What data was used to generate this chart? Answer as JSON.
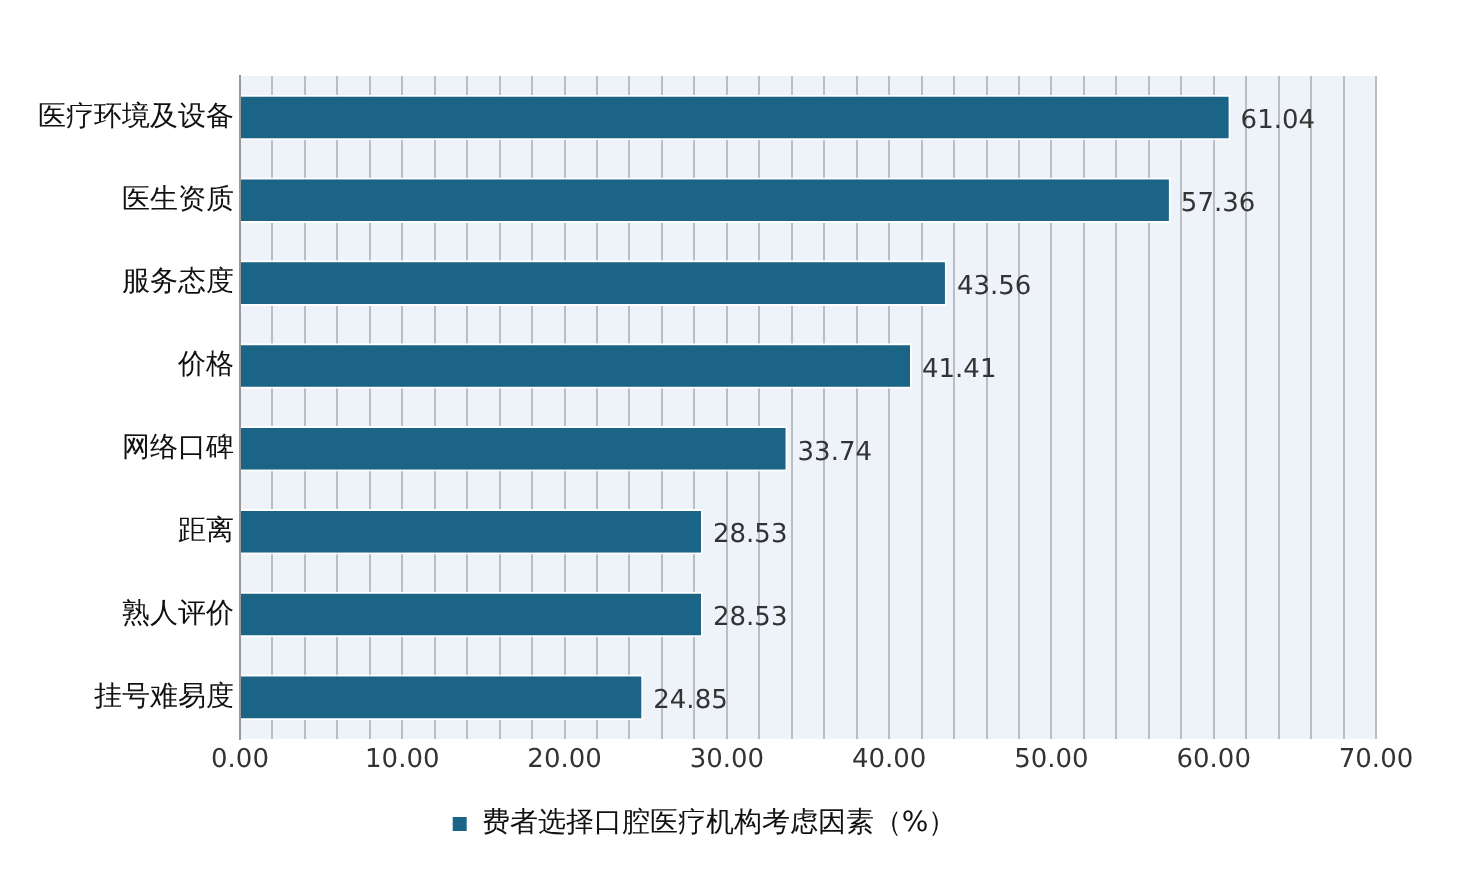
{
  "chart_data": {
    "type": "bar",
    "orientation": "horizontal",
    "categories": [
      "医疗环境及设备",
      "医生资质",
      "服务态度",
      "价格",
      "网络口碑",
      "距离",
      "熟人评价",
      "挂号难易度"
    ],
    "series": [
      {
        "name": "费者选择口腔医疗机构考虑因素（%）",
        "color": "#1b6486",
        "values": [
          61.04,
          57.36,
          43.56,
          41.41,
          33.74,
          28.53,
          28.53,
          24.85
        ]
      }
    ],
    "xlim": [
      0,
      70
    ],
    "xticks": [
      {
        "value": 0,
        "label": "0.00"
      },
      {
        "value": 2,
        "label": null
      },
      {
        "value": 4,
        "label": null
      },
      {
        "value": 6,
        "label": null
      },
      {
        "value": 8,
        "label": null
      },
      {
        "value": 10,
        "label": "10.00"
      },
      {
        "value": 12,
        "label": null
      },
      {
        "value": 14,
        "label": null
      },
      {
        "value": 16,
        "label": null
      },
      {
        "value": 18,
        "label": null
      },
      {
        "value": 20,
        "label": "20.00"
      },
      {
        "value": 22,
        "label": null
      },
      {
        "value": 24,
        "label": null
      },
      {
        "value": 26,
        "label": null
      },
      {
        "value": 28,
        "label": null
      },
      {
        "value": 30,
        "label": "30.00"
      },
      {
        "value": 32,
        "label": null
      },
      {
        "value": 34,
        "label": null
      },
      {
        "value": 36,
        "label": null
      },
      {
        "value": 38,
        "label": null
      },
      {
        "value": 40,
        "label": "40.00"
      },
      {
        "value": 42,
        "label": null
      },
      {
        "value": 44,
        "label": null
      },
      {
        "value": 46,
        "label": null
      },
      {
        "value": 48,
        "label": null
      },
      {
        "value": 50,
        "label": "50.00"
      },
      {
        "value": 52,
        "label": null
      },
      {
        "value": 54,
        "label": null
      },
      {
        "value": 56,
        "label": null
      },
      {
        "value": 58,
        "label": null
      },
      {
        "value": 60,
        "label": "60.00"
      },
      {
        "value": 62,
        "label": null
      },
      {
        "value": 64,
        "label": null
      },
      {
        "value": 66,
        "label": null
      },
      {
        "value": 68,
        "label": null
      },
      {
        "value": 70,
        "label": "70.00"
      }
    ],
    "grid": "x",
    "data_labels": true,
    "legend": "bottom"
  }
}
